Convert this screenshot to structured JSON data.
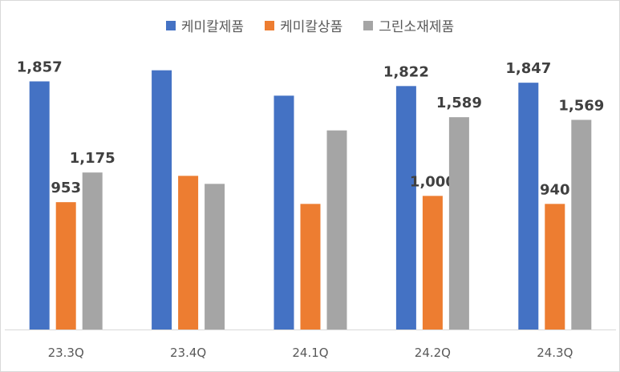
{
  "chart_data": {
    "type": "bar",
    "categories": [
      "23.3Q",
      "23.4Q",
      "24.1Q",
      "24.2Q",
      "24.3Q"
    ],
    "series": [
      {
        "name": "케미칼제품",
        "color": "#4472C4",
        "values": [
          1857,
          1940,
          1750,
          1822,
          1847
        ],
        "labels": [
          "1,857",
          "",
          "",
          "1,822",
          "1,847"
        ]
      },
      {
        "name": "케미칼상품",
        "color": "#ED7D31",
        "values": [
          953,
          1150,
          940,
          1000,
          940
        ],
        "labels": [
          "953",
          "",
          "",
          "1,000",
          "940"
        ]
      },
      {
        "name": "그린소재제품",
        "color": "#A5A5A5",
        "values": [
          1175,
          1090,
          1490,
          1589,
          1569
        ],
        "labels": [
          "1,175",
          "",
          "",
          "1,589",
          "1,569"
        ]
      }
    ],
    "ylim": [
      0,
      2100
    ],
    "grid": false,
    "legend_position": "top"
  }
}
